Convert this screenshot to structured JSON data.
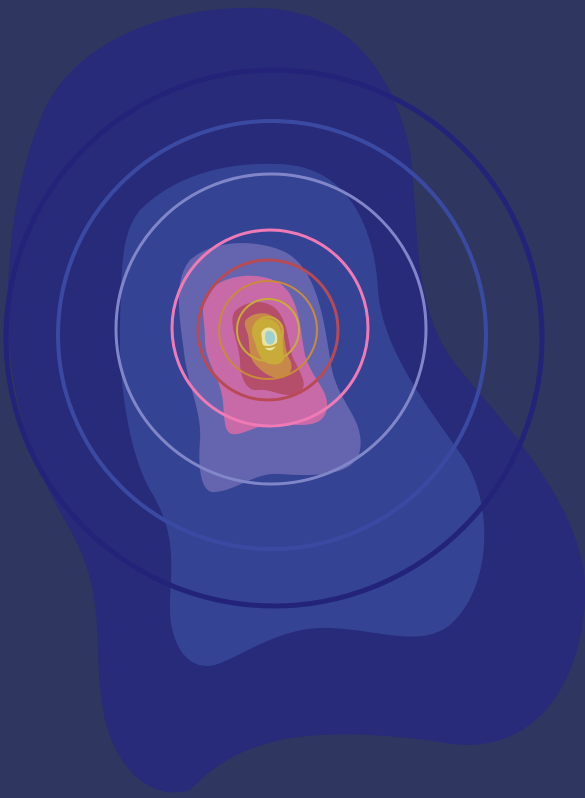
{
  "colors": {
    "background": "#2f365f",
    "blob_outer": "#282a7a",
    "blob_mid": "#344394",
    "blob_inner": "#6465ae",
    "blob_pink": "#c86aa8",
    "blob_red": "#b44e6a",
    "blob_orange": "#c8884a",
    "blob_gold": "#c9ab3a",
    "blob_core": "#e7e4a4",
    "blob_light": "#9fd0cf",
    "ring_outer": "#23237a",
    "ring_mid": "#3a4aa3",
    "ring_inner": "#8086c8",
    "ring_pink": "#f07ab6",
    "ring_rust": "#b84a56",
    "ring_orange": "#c98a3c",
    "ring_gold": "#c9ab3a"
  },
  "layers": [
    "blob-outer",
    "blob-mid",
    "blob-inner",
    "blob-pink",
    "blob-red",
    "blob-orange",
    "blob-gold",
    "blob-core"
  ],
  "rings": [
    "ring-outer",
    "ring-mid",
    "ring-inner",
    "ring-pink",
    "ring-rust",
    "ring-orange",
    "ring-gold",
    "ring-core"
  ]
}
